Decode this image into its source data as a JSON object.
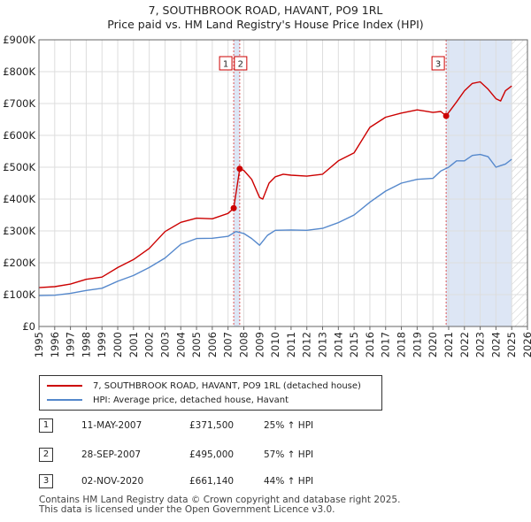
{
  "title_line1": "7, SOUTHBROOK ROAD, HAVANT, PO9 1RL",
  "title_line2": "Price paid vs. HM Land Registry's House Price Index (HPI)",
  "chart_data": {
    "type": "line",
    "title": "7, SOUTHBROOK ROAD, HAVANT, PO9 1RL — Price paid vs. HM Land Registry's House Price Index (HPI)",
    "xlabel": "",
    "ylabel": "",
    "xlim": [
      1995,
      2026
    ],
    "ylim": [
      0,
      900000
    ],
    "x_ticks": [
      "1995",
      "1996",
      "1997",
      "1998",
      "1999",
      "2000",
      "2001",
      "2002",
      "2003",
      "2004",
      "2005",
      "2006",
      "2007",
      "2008",
      "2009",
      "2010",
      "2011",
      "2012",
      "2013",
      "2014",
      "2015",
      "2016",
      "2017",
      "2018",
      "2019",
      "2020",
      "2021",
      "2022",
      "2023",
      "2024",
      "2025",
      "2026"
    ],
    "y_ticks": [
      {
        "value": 0,
        "label": "£0"
      },
      {
        "value": 100000,
        "label": "£100K"
      },
      {
        "value": 200000,
        "label": "£200K"
      },
      {
        "value": 300000,
        "label": "£300K"
      },
      {
        "value": 400000,
        "label": "£400K"
      },
      {
        "value": 500000,
        "label": "£500K"
      },
      {
        "value": 600000,
        "label": "£600K"
      },
      {
        "value": 700000,
        "label": "£700K"
      },
      {
        "value": 800000,
        "label": "£800K"
      },
      {
        "value": 900000,
        "label": "£900K"
      }
    ],
    "series": [
      {
        "name": "7, SOUTHBROOK ROAD, HAVANT, PO9 1RL (detached house)",
        "color": "#cc0000",
        "x": [
          1995.0,
          1996.0,
          1997.0,
          1998.0,
          1999.0,
          2000.0,
          2001.0,
          2002.0,
          2003.0,
          2004.0,
          2005.0,
          2006.0,
          2007.0,
          2007.36,
          2007.74,
          2008.0,
          2008.5,
          2009.0,
          2009.2,
          2009.6,
          2010.0,
          2010.5,
          2011.0,
          2012.0,
          2013.0,
          2014.0,
          2015.0,
          2016.0,
          2017.0,
          2018.0,
          2019.0,
          2019.5,
          2020.0,
          2020.5,
          2020.84,
          2021.5,
          2022.0,
          2022.5,
          2023.0,
          2023.5,
          2024.0,
          2024.3,
          2024.6,
          2025.0
        ],
        "y": [
          122000,
          125000,
          133000,
          148000,
          155000,
          185000,
          210000,
          245000,
          298000,
          327000,
          340000,
          338000,
          355000,
          371500,
          495000,
          490000,
          462000,
          405000,
          400000,
          450000,
          470000,
          478000,
          475000,
          472000,
          478000,
          520000,
          545000,
          625000,
          657000,
          670000,
          680000,
          676000,
          672000,
          675000,
          661140,
          705000,
          740000,
          763000,
          768000,
          745000,
          715000,
          708000,
          740000,
          755000
        ]
      },
      {
        "name": "HPI: Average price, detached house, Havant",
        "color": "#5588cc",
        "x": [
          1995.0,
          1996.0,
          1997.0,
          1998.0,
          1999.0,
          2000.0,
          2001.0,
          2002.0,
          2003.0,
          2004.0,
          2005.0,
          2006.0,
          2007.0,
          2007.5,
          2008.0,
          2008.5,
          2009.0,
          2009.5,
          2010.0,
          2011.0,
          2012.0,
          2013.0,
          2014.0,
          2015.0,
          2016.0,
          2017.0,
          2018.0,
          2019.0,
          2020.0,
          2020.5,
          2021.0,
          2021.5,
          2022.0,
          2022.5,
          2023.0,
          2023.5,
          2024.0,
          2024.3,
          2024.6,
          2025.0
        ],
        "y": [
          97000,
          98000,
          104000,
          113000,
          120000,
          142000,
          160000,
          185000,
          215000,
          258000,
          276000,
          277000,
          283000,
          298000,
          292000,
          276000,
          255000,
          286000,
          302000,
          303000,
          302000,
          308000,
          326000,
          350000,
          390000,
          425000,
          450000,
          462000,
          465000,
          488000,
          500000,
          520000,
          520000,
          537000,
          540000,
          533000,
          500000,
          505000,
          510000,
          525000
        ]
      }
    ],
    "markers": [
      {
        "label": "1",
        "x": 2007.36,
        "y": 371500
      },
      {
        "label": "2",
        "x": 2007.74,
        "y": 495000
      },
      {
        "label": "3",
        "x": 2020.84,
        "y": 661140
      }
    ],
    "projection_shade_from": 2025.0
  },
  "legend": {
    "property_label": "7, SOUTHBROOK ROAD, HAVANT, PO9 1RL (detached house)",
    "hpi_label": "HPI: Average price, detached house, Havant",
    "property_color": "#cc0000",
    "hpi_color": "#5588cc"
  },
  "transactions": [
    {
      "num": "1",
      "date": "11-MAY-2007",
      "price": "£371,500",
      "change": "25% ↑ HPI"
    },
    {
      "num": "2",
      "date": "28-SEP-2007",
      "price": "£495,000",
      "change": "57% ↑ HPI"
    },
    {
      "num": "3",
      "date": "02-NOV-2020",
      "price": "£661,140",
      "change": "44% ↑ HPI"
    }
  ],
  "footer": {
    "line1": "Contains HM Land Registry data © Crown copyright and database right 2025.",
    "line2": "This data is licensed under the Open Government Licence v3.0."
  }
}
